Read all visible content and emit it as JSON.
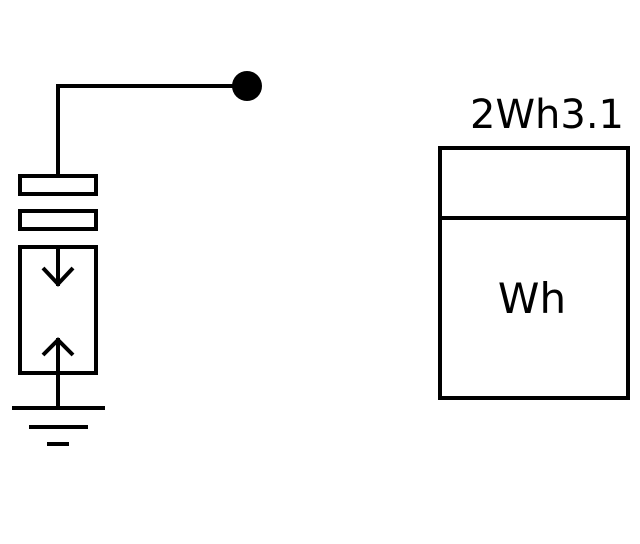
{
  "diagram": {
    "meter": {
      "reference": "2Wh3.1",
      "unit_label": "Wh"
    },
    "colors": {
      "stroke": "#000000",
      "background": "#ffffff"
    }
  }
}
